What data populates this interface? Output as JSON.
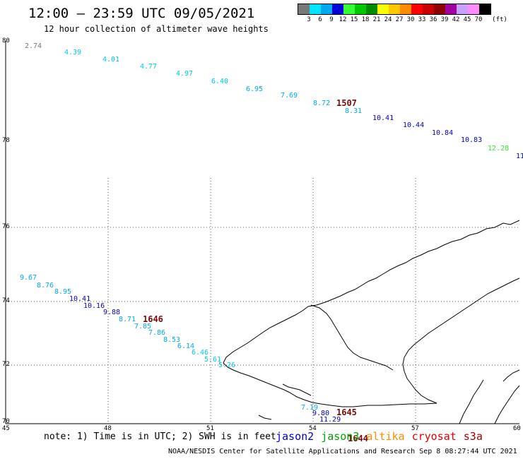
{
  "title": "12:00 – 23:59 UTC 09/05/2021",
  "subtitle": "12 hour collection of altimeter wave heights",
  "legend": {
    "unit": "(ft)",
    "bins": [
      {
        "label": "3",
        "color": "#787878"
      },
      {
        "label": "6",
        "color": "#00e5ff"
      },
      {
        "label": "9",
        "color": "#00a8f0"
      },
      {
        "label": "12",
        "color": "#0000d8"
      },
      {
        "label": "15",
        "color": "#33ff33"
      },
      {
        "label": "18",
        "color": "#00c800"
      },
      {
        "label": "21",
        "color": "#008c00"
      },
      {
        "label": "24",
        "color": "#ffff00"
      },
      {
        "label": "27",
        "color": "#ffc800"
      },
      {
        "label": "30",
        "color": "#ff8c00"
      },
      {
        "label": "33",
        "color": "#ff0000"
      },
      {
        "label": "36",
        "color": "#c80000"
      },
      {
        "label": "39",
        "color": "#8c0000"
      },
      {
        "label": "42",
        "color": "#a000a0"
      },
      {
        "label": "45",
        "color": "#c8a0ff"
      },
      {
        "label": "70",
        "color": "#ff8cff"
      },
      {
        "label": "",
        "color": "#000000"
      }
    ]
  },
  "axes": {
    "lon_ticks": [
      "45",
      "48",
      "51",
      "54",
      "57",
      "60"
    ],
    "lat_ticks_upper": [
      "80",
      "78"
    ],
    "lat_ticks_lower": [
      "76",
      "74",
      "72",
      "70"
    ]
  },
  "tracks": [
    {
      "name": "upper-track",
      "pass_time": "1507",
      "points": [
        {
          "v": "2.74",
          "color": "#787878"
        },
        {
          "v": "4.39",
          "color": "#00c8ea"
        },
        {
          "v": "4.01",
          "color": "#00c8ea"
        },
        {
          "v": "4.77",
          "color": "#00c8ea"
        },
        {
          "v": "4.97",
          "color": "#00c8ea"
        },
        {
          "v": "6.40",
          "color": "#00c8ea"
        },
        {
          "v": "6.95",
          "color": "#00a8f0"
        },
        {
          "v": "7.69",
          "color": "#00a8f0"
        },
        {
          "v": "8.72",
          "color": "#00a8f0"
        },
        {
          "v": "8.31",
          "color": "#00a8f0"
        },
        {
          "v": "10.41",
          "color": "#0000b4"
        },
        {
          "v": "10.44",
          "color": "#0000b4"
        },
        {
          "v": "10.84",
          "color": "#0000b4"
        },
        {
          "v": "10.83",
          "color": "#0000b4"
        },
        {
          "v": "12.28",
          "color": "#33e833"
        },
        {
          "v": "11",
          "color": "#0000b4"
        }
      ]
    },
    {
      "name": "lower-track",
      "pass_time": "1646",
      "points": [
        {
          "v": "9.67",
          "color": "#00a8f0"
        },
        {
          "v": "8.76",
          "color": "#00a8f0"
        },
        {
          "v": "8.95",
          "color": "#00a8f0"
        },
        {
          "v": "10.41",
          "color": "#0000b4"
        },
        {
          "v": "10.16",
          "color": "#0000b4"
        },
        {
          "v": "9.88",
          "color": "#0000b4"
        },
        {
          "v": "8.71",
          "color": "#00a8f0"
        },
        {
          "v": "7.85",
          "color": "#00a8f0"
        },
        {
          "v": "7.86",
          "color": "#00a8f0"
        },
        {
          "v": "8.53",
          "color": "#00a8f0"
        },
        {
          "v": "6.14",
          "color": "#00a8f0"
        },
        {
          "v": "6.46",
          "color": "#00c8ea"
        },
        {
          "v": "5.61",
          "color": "#00c8ea"
        },
        {
          "v": "5.26",
          "color": "#00c8ea"
        }
      ]
    },
    {
      "name": "south-track",
      "pass_times": [
        "1645",
        "1644"
      ],
      "points": [
        {
          "v": "7.19",
          "color": "#00a8f0"
        },
        {
          "v": "9.80",
          "color": "#0000b4"
        },
        {
          "v": "11.29",
          "color": "#0000b4"
        }
      ]
    }
  ],
  "note": "note: 1) Time is in UTC; 2) SWH is in feet",
  "satellites": [
    {
      "name": "jason2",
      "color": "#0000c8"
    },
    {
      "name": "jason3",
      "color": "#00a000"
    },
    {
      "name": "altika",
      "color": "#ff8c00"
    },
    {
      "name": "cryosat",
      "color": "#e00000"
    },
    {
      "name": "s3a",
      "color": "#a00000"
    }
  ],
  "credit": "NOAA/NESDIS Center for Satellite Applications and Research    Sep  8 08:27:44 UTC 2021"
}
